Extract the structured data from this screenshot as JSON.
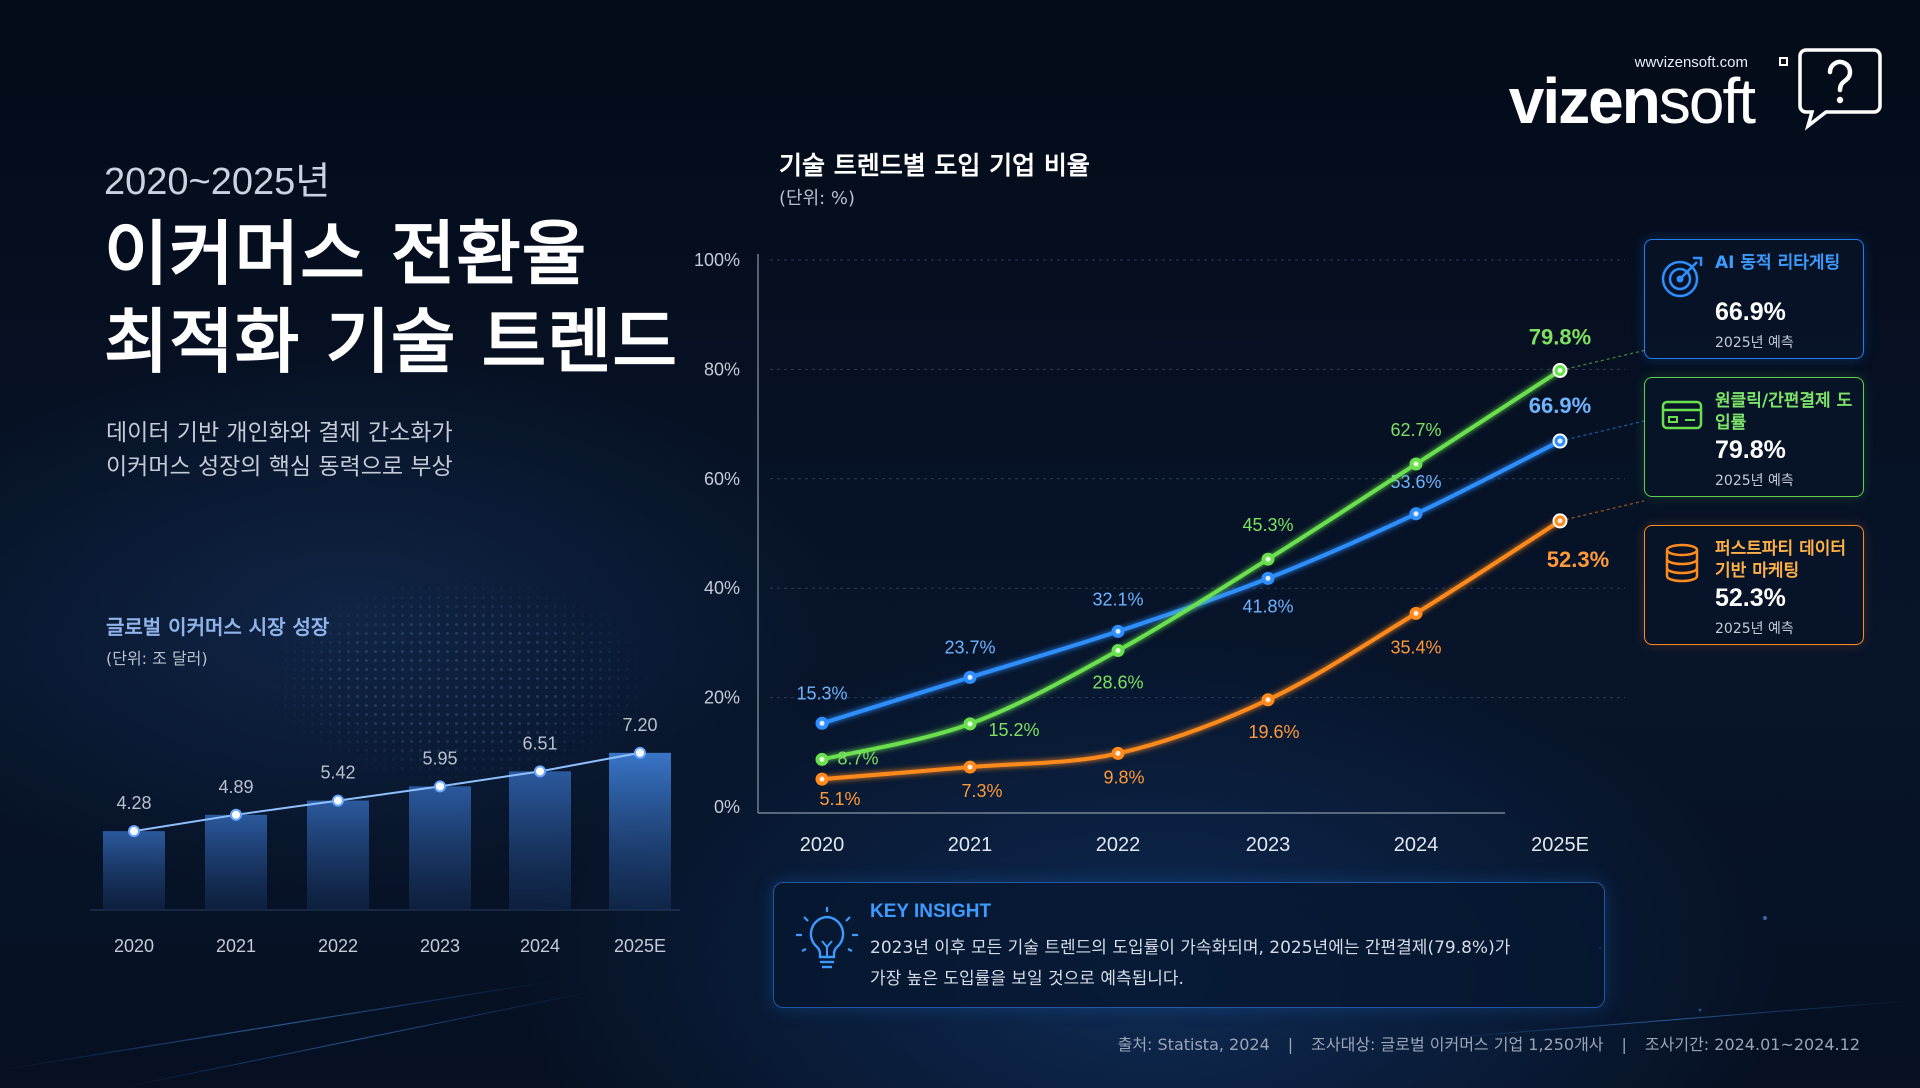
{
  "logo": {
    "url": "wwvizensoft.com",
    "word_bold": "vizen",
    "word_light": "soft"
  },
  "header": {
    "kicker": "2020~2025년",
    "title_line1": "이커머스 전환율",
    "title_line2": "최적화 기술 트렌드",
    "subtitle_line1": "데이터 기반 개인화와 결제 간소화가",
    "subtitle_line2": "이커머스 성장의 핵심 동력으로 부상"
  },
  "market": {
    "title": "글로벌 이커머스 시장 성장",
    "unit": "(단위: 조 달러)"
  },
  "main_chart": {
    "title": "기술 트렌드별 도입 기업 비율",
    "unit": "(단위: %)"
  },
  "chart_data": [
    {
      "type": "bar",
      "title": "글로벌 이커머스 시장 성장",
      "unit": "(단위: 조 달러)",
      "categories": [
        "2020",
        "2021",
        "2022",
        "2023",
        "2024",
        "2025E"
      ],
      "values": [
        4.28,
        4.89,
        5.42,
        5.95,
        6.51,
        7.2
      ],
      "value_labels": [
        "4.28",
        "4.89",
        "5.42",
        "5.95",
        "6.51",
        "7.20"
      ],
      "overlay": "line connecting bar tops",
      "color": "#3d7fd9"
    },
    {
      "type": "line",
      "title": "기술 트렌드별 도입 기업 비율",
      "unit": "(단위: %)",
      "categories": [
        "2020",
        "2021",
        "2022",
        "2023",
        "2024",
        "2025E"
      ],
      "ylim": [
        0,
        100
      ],
      "yticks": [
        "0%",
        "20%",
        "40%",
        "60%",
        "80%",
        "100%"
      ],
      "ytick_values": [
        0,
        20,
        40,
        60,
        80,
        100
      ],
      "grid": true,
      "series": [
        {
          "name": "AI 동적 리타게팅",
          "color": "#2f8fff",
          "values": [
            15.3,
            23.7,
            32.1,
            41.8,
            53.6,
            66.9
          ],
          "labels": [
            "15.3%",
            "23.7%",
            "32.1%",
            "41.8%",
            "53.6%",
            "66.9%"
          ]
        },
        {
          "name": "원클릭/간편결제 도입률",
          "color": "#6be04f",
          "values": [
            8.7,
            15.2,
            28.6,
            45.3,
            62.7,
            79.8
          ],
          "labels": [
            "8.7%",
            "15.2%",
            "28.6%",
            "45.3%",
            "62.7%",
            "79.8%"
          ]
        },
        {
          "name": "퍼스트파티 데이터 기반 마케팅",
          "color": "#ff8a1e",
          "values": [
            5.1,
            7.3,
            9.8,
            19.6,
            35.4,
            52.3
          ],
          "labels": [
            "5.1%",
            "7.3%",
            "9.8%",
            "19.6%",
            "35.4%",
            "52.3%"
          ]
        }
      ]
    }
  ],
  "cards": [
    {
      "label": "AI 동적 리타게팅",
      "value": "66.9%",
      "note": "2025년 예측",
      "icon": "target-icon"
    },
    {
      "label": "원클릭/간편결제 도입률",
      "value": "79.8%",
      "note": "2025년 예측",
      "icon": "card-icon"
    },
    {
      "label": "퍼스트파티 데이터 기반 마케팅",
      "value": "52.3%",
      "note": "2025년 예측",
      "icon": "database-icon"
    }
  ],
  "insight": {
    "heading": "KEY INSIGHT",
    "line1": "2023년 이후 모든 기술 트렌드의 도입률이 가속화되며, 2025년에는 간편결제(79.8%)가",
    "line2": "가장 높은 도입률을 보일 것으로 예측됩니다.",
    "icon": "lightbulb-icon"
  },
  "footer": {
    "source": "출처: Statista, 2024",
    "target": "조사대상: 글로벌 이커머스 기업 1,250개사",
    "period": "조사기간: 2024.01~2024.12"
  }
}
